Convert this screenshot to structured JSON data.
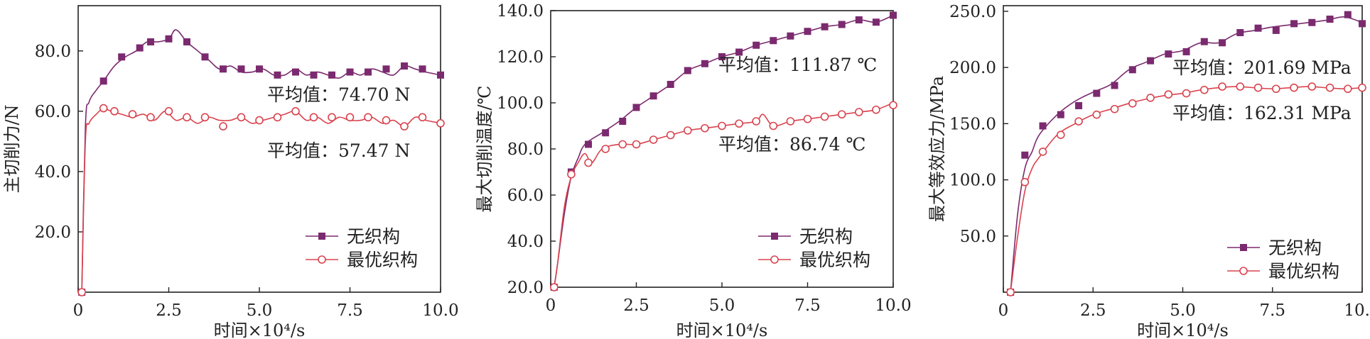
{
  "colors": {
    "series1": "#7b2a6f",
    "series2": "#d9434e",
    "axis": "#222222"
  },
  "chart_data": [
    {
      "type": "line",
      "xlabel": "时间×10⁴/s",
      "ylabel": "主切削力/N",
      "xlim": [
        0,
        10
      ],
      "ylim": [
        0,
        95
      ],
      "xticks": [
        0,
        2.5,
        5,
        7.5,
        10
      ],
      "xtick_labels": [
        "0",
        "2.5",
        "5.0",
        "7.5",
        "10.0"
      ],
      "yticks": [
        20,
        40,
        60,
        80
      ],
      "ytick_labels": [
        "20.0",
        "40.0",
        "60.0",
        "80.0"
      ],
      "legend_position": "bottom-right",
      "annotations": [
        "平均值：74.70 N",
        "平均值：57.47 N"
      ],
      "series": [
        {
          "name": "无织构",
          "marker": "square",
          "x": [
            0.1,
            0.2,
            0.3,
            0.5,
            0.7,
            1.0,
            1.3,
            1.6,
            1.9,
            2.2,
            2.5,
            2.7,
            3.0,
            3.3,
            3.6,
            3.9,
            4.2,
            4.5,
            4.8,
            5.1,
            5.4,
            5.7,
            6.0,
            6.3,
            6.6,
            6.9,
            7.2,
            7.5,
            7.8,
            8.1,
            8.4,
            8.7,
            9.0,
            9.3,
            9.6,
            10.0
          ],
          "y": [
            0,
            55,
            63,
            67,
            70,
            75,
            78,
            80,
            83,
            83,
            84,
            87,
            83,
            80,
            77,
            74,
            75,
            73,
            73,
            74,
            72,
            72,
            74,
            72,
            73,
            72,
            71,
            73,
            72,
            74,
            73,
            72,
            75,
            74,
            73,
            72
          ],
          "marker_x": [
            0.1,
            0.7,
            1.2,
            1.7,
            2.0,
            2.5,
            3.0,
            3.5,
            4.0,
            4.5,
            5.0,
            5.5,
            6.0,
            6.5,
            7.0,
            7.5,
            8.0,
            8.5,
            9.0,
            9.5,
            10.0
          ],
          "marker_y": [
            0,
            70,
            78,
            81,
            83,
            84,
            83,
            78,
            74,
            74,
            74,
            72,
            73,
            72,
            72,
            73,
            73,
            74,
            75,
            74,
            72
          ]
        },
        {
          "name": "最优织构",
          "marker": "circle",
          "x": [
            0.1,
            0.2,
            0.3,
            0.5,
            0.7,
            0.9,
            1.2,
            1.5,
            1.8,
            2.1,
            2.4,
            2.7,
            3.0,
            3.3,
            3.6,
            3.9,
            4.2,
            4.5,
            4.8,
            5.1,
            5.4,
            5.7,
            6.0,
            6.3,
            6.6,
            6.9,
            7.2,
            7.5,
            7.8,
            8.1,
            8.4,
            8.7,
            9.0,
            9.3,
            9.6,
            10.0
          ],
          "y": [
            0,
            50,
            56,
            59,
            61,
            60,
            59,
            58,
            59,
            57,
            60,
            57,
            58,
            56,
            58,
            57,
            57,
            58,
            56,
            57,
            58,
            59,
            60,
            57,
            58,
            56,
            58,
            57,
            57,
            58,
            56,
            57,
            55,
            58,
            57,
            56
          ],
          "marker_x": [
            0.1,
            0.7,
            1.0,
            1.5,
            2.0,
            2.5,
            3.0,
            3.5,
            4.0,
            4.5,
            5.0,
            5.5,
            6.0,
            6.5,
            7.0,
            7.5,
            8.0,
            8.5,
            9.0,
            9.5,
            10.0
          ],
          "marker_y": [
            0,
            61,
            60,
            59,
            58,
            60,
            58,
            58,
            55,
            58,
            57,
            58,
            60,
            58,
            58,
            58,
            58,
            57,
            55,
            58,
            56
          ]
        }
      ]
    },
    {
      "type": "line",
      "xlabel": "时间×10⁴/s",
      "ylabel": "最大切削温度/℃",
      "xlim": [
        0,
        10
      ],
      "ylim": [
        20,
        140
      ],
      "xticks": [
        0,
        2.5,
        5,
        7.5,
        10
      ],
      "xtick_labels": [
        "0",
        "2.5",
        "5.0",
        "7.5",
        "10.0"
      ],
      "yticks": [
        20,
        40,
        60,
        80,
        100,
        120,
        140
      ],
      "ytick_labels": [
        "20.0",
        "40.0",
        "60.0",
        "80.0",
        "100.0",
        "120.0",
        "140.0"
      ],
      "legend_position": "bottom-right",
      "annotations": [
        "平均值：111.87 ℃",
        "平均值：86.74 ℃"
      ],
      "series": [
        {
          "name": "无织构",
          "marker": "square",
          "x": [
            0.1,
            0.2,
            0.4,
            0.6,
            0.8,
            1.0,
            1.5,
            2.0,
            2.5,
            3.0,
            3.5,
            4.0,
            4.5,
            5.0,
            5.5,
            6.0,
            6.5,
            7.0,
            7.5,
            8.0,
            8.5,
            9.0,
            9.5,
            10.0
          ],
          "y": [
            20,
            30,
            52,
            68,
            76,
            82,
            87,
            92,
            98,
            103,
            108,
            114,
            117,
            120,
            122,
            125,
            127,
            129,
            131,
            133,
            134,
            136,
            135,
            138
          ],
          "marker_x": [
            0.1,
            0.6,
            1.1,
            1.6,
            2.1,
            2.5,
            3.0,
            3.5,
            4.0,
            4.5,
            5.0,
            5.5,
            6.0,
            6.5,
            7.0,
            7.5,
            8.0,
            8.5,
            9.0,
            9.5,
            10.0
          ],
          "marker_y": [
            20,
            70,
            82,
            87,
            92,
            98,
            103,
            108,
            114,
            117,
            120,
            122,
            125,
            127,
            129,
            131,
            133,
            134,
            136,
            135,
            138
          ]
        },
        {
          "name": "最优织构",
          "marker": "circle",
          "x": [
            0.1,
            0.2,
            0.4,
            0.6,
            0.8,
            1.0,
            1.2,
            1.5,
            2.0,
            2.5,
            3.0,
            3.5,
            4.0,
            4.5,
            5.0,
            5.5,
            6.0,
            6.2,
            6.5,
            7.0,
            7.5,
            8.0,
            8.5,
            9.0,
            9.5,
            10.0
          ],
          "y": [
            20,
            30,
            55,
            68,
            74,
            78,
            74,
            80,
            82,
            82,
            84,
            86,
            88,
            89,
            90,
            91,
            92,
            95,
            90,
            92,
            93,
            94,
            95,
            96,
            97,
            100
          ],
          "marker_x": [
            0.1,
            0.6,
            1.1,
            1.6,
            2.1,
            2.5,
            3.0,
            3.5,
            4.0,
            4.5,
            5.0,
            5.5,
            6.0,
            6.5,
            7.0,
            7.5,
            8.0,
            8.5,
            9.0,
            9.5,
            10.0
          ],
          "marker_y": [
            20,
            69,
            74,
            80,
            82,
            82,
            84,
            86,
            88,
            89,
            90,
            91,
            92,
            90,
            92,
            93,
            94,
            95,
            96,
            97,
            99
          ]
        }
      ]
    },
    {
      "type": "line",
      "xlabel": "时间×10⁴/s",
      "ylabel": "最大等效应力/MPa",
      "xlim": [
        0,
        10
      ],
      "ylim": [
        0,
        255
      ],
      "xticks": [
        0,
        2.5,
        5,
        7.5,
        10
      ],
      "xtick_labels": [
        "0",
        "2.5",
        "5.0",
        "7.5",
        "10.0"
      ],
      "yticks": [
        50,
        100,
        150,
        200,
        250
      ],
      "ytick_labels": [
        "50.0",
        "100.0",
        "150.0",
        "200.0",
        "250.0"
      ],
      "legend_position": "bottom-right",
      "annotations": [
        "平均值：201.69 MPa",
        "平均值：162.31 MPa"
      ],
      "series": [
        {
          "name": "无织构",
          "marker": "square",
          "x": [
            0.2,
            0.4,
            0.6,
            0.8,
            1.0,
            1.5,
            2.0,
            2.5,
            3.0,
            3.5,
            4.0,
            4.5,
            5.0,
            5.5,
            6.0,
            6.5,
            7.0,
            7.5,
            8.0,
            8.5,
            9.0,
            9.5,
            10.0
          ],
          "y": [
            0,
            70,
            110,
            125,
            140,
            158,
            170,
            178,
            185,
            198,
            205,
            212,
            215,
            222,
            222,
            230,
            233,
            236,
            238,
            240,
            242,
            245,
            240
          ],
          "marker_x": [
            0.2,
            0.6,
            1.1,
            1.6,
            2.1,
            2.6,
            3.1,
            3.6,
            4.1,
            4.6,
            5.1,
            5.6,
            6.1,
            6.6,
            7.1,
            7.6,
            8.1,
            8.6,
            9.1,
            9.6,
            10.0
          ],
          "marker_y": [
            0,
            122,
            148,
            158,
            166,
            177,
            184,
            198,
            206,
            212,
            214,
            223,
            222,
            231,
            235,
            233,
            239,
            240,
            243,
            247,
            239
          ]
        },
        {
          "name": "最优织构",
          "marker": "circle",
          "x": [
            0.2,
            0.4,
            0.6,
            0.8,
            1.0,
            1.5,
            2.0,
            2.5,
            3.0,
            3.5,
            4.0,
            4.5,
            5.0,
            5.5,
            6.0,
            6.5,
            7.0,
            7.5,
            8.0,
            8.5,
            9.0,
            9.5,
            10.0
          ],
          "y": [
            0,
            50,
            90,
            110,
            120,
            140,
            150,
            158,
            163,
            168,
            172,
            175,
            177,
            180,
            182,
            183,
            182,
            181,
            182,
            183,
            182,
            181,
            182
          ],
          "marker_x": [
            0.2,
            0.6,
            1.1,
            1.6,
            2.1,
            2.6,
            3.1,
            3.6,
            4.1,
            4.6,
            5.1,
            5.6,
            6.1,
            6.6,
            7.1,
            7.6,
            8.1,
            8.6,
            9.1,
            9.6,
            10.0
          ],
          "marker_y": [
            0,
            98,
            125,
            140,
            152,
            158,
            163,
            168,
            173,
            176,
            177,
            180,
            183,
            183,
            182,
            181,
            182,
            183,
            182,
            181,
            182
          ]
        }
      ]
    }
  ]
}
